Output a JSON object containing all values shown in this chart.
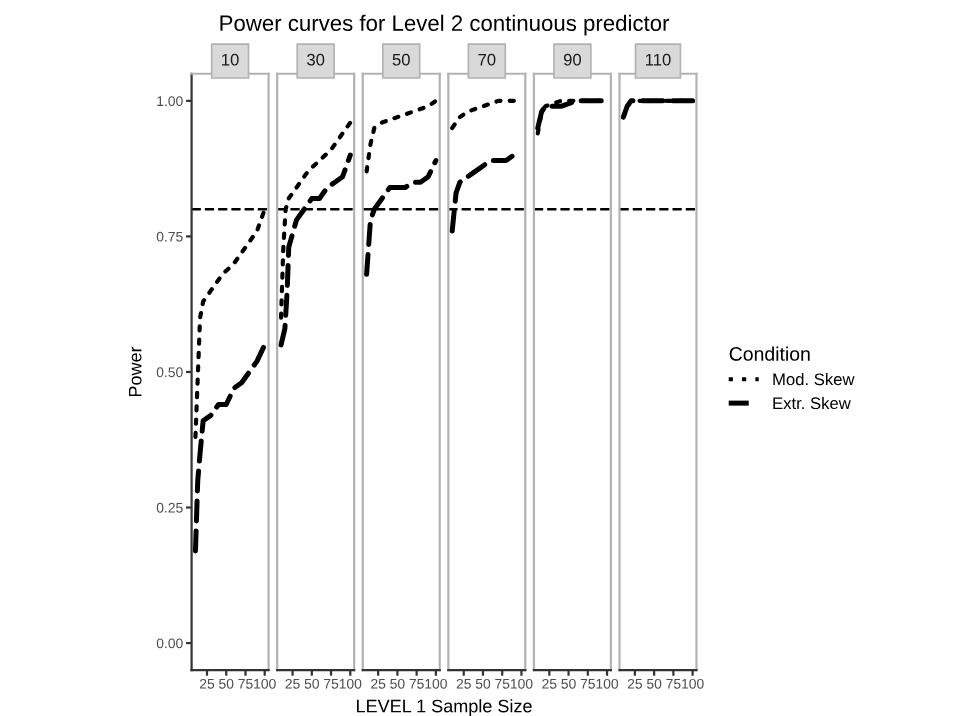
{
  "chart_data": [
    {
      "type": "line",
      "title": "10",
      "annotations": [
        "Power curves for Level 2 continuous predictor"
      ],
      "xlabel": "LEVEL 1 Sample Size",
      "ylabel": "Power",
      "legend_title": "Condition",
      "legend": "right",
      "grid": false,
      "xlim": [
        5,
        105
      ],
      "xticks": [
        25,
        50,
        75,
        100
      ],
      "ylim": [
        -0.05,
        1.05
      ],
      "yticks": [
        {
          "value": 0,
          "label": "0.00"
        },
        {
          "value": 0.25,
          "label": "0.25"
        },
        {
          "value": 0.5,
          "label": "0.50"
        },
        {
          "value": 0.75,
          "label": "0.75"
        },
        {
          "value": 1,
          "label": "1.00"
        }
      ],
      "ref_lines": [
        {
          "axis": "y",
          "value": 0.8,
          "color": "#000000",
          "line_style": "dashed"
        }
      ],
      "series": [
        {
          "name": "Mod. Skew",
          "color": "#000000",
          "line_style": "dotted",
          "x": [
            10,
            13,
            16,
            20,
            30,
            45,
            60,
            75,
            90,
            100
          ],
          "values": [
            0.38,
            0.49,
            0.6,
            0.63,
            0.65,
            0.68,
            0.7,
            0.73,
            0.76,
            0.8
          ]
        },
        {
          "name": "Extr. Skew",
          "color": "#000000",
          "line_style": "dashed",
          "x": [
            10,
            13,
            16,
            20,
            30,
            40,
            50,
            60,
            70,
            80,
            90,
            100
          ],
          "values": [
            0.17,
            0.3,
            0.35,
            0.41,
            0.42,
            0.44,
            0.44,
            0.47,
            0.48,
            0.5,
            0.52,
            0.55
          ]
        }
      ]
    },
    {
      "type": "line",
      "title": "30",
      "tick_labels": "x",
      "grid": false,
      "xlim": [
        5,
        105
      ],
      "xticks": [
        25,
        50,
        75,
        100
      ],
      "ylim": [
        -0.05,
        1.05
      ],
      "yticks": [
        {
          "value": 0,
          "label": null
        },
        {
          "value": 0.25,
          "label": null
        },
        {
          "value": 0.5,
          "label": null
        },
        {
          "value": 0.75,
          "label": null
        },
        {
          "value": 1,
          "label": null
        }
      ],
      "ref_lines": [
        {
          "axis": "y",
          "value": 0.8,
          "color": "#000000",
          "line_style": "dashed"
        }
      ],
      "series": [
        {
          "color": "#000000",
          "line_style": "dotted",
          "x": [
            10,
            13,
            16,
            20,
            30,
            45,
            60,
            75,
            90,
            100
          ],
          "values": [
            0.6,
            0.73,
            0.8,
            0.82,
            0.84,
            0.87,
            0.89,
            0.91,
            0.94,
            0.96
          ]
        },
        {
          "color": "#000000",
          "line_style": "dashed",
          "x": [
            10,
            15,
            18,
            20,
            30,
            40,
            50,
            60,
            70,
            80,
            90,
            100
          ],
          "values": [
            0.55,
            0.58,
            0.65,
            0.73,
            0.78,
            0.8,
            0.82,
            0.82,
            0.84,
            0.85,
            0.86,
            0.9
          ]
        }
      ]
    },
    {
      "type": "line",
      "title": "50",
      "tick_labels": "x",
      "grid": false,
      "xlim": [
        5,
        105
      ],
      "xticks": [
        25,
        50,
        75,
        100
      ],
      "ylim": [
        -0.05,
        1.05
      ],
      "yticks": [
        {
          "value": 0,
          "label": null
        },
        {
          "value": 0.25,
          "label": null
        },
        {
          "value": 0.5,
          "label": null
        },
        {
          "value": 0.75,
          "label": null
        },
        {
          "value": 1,
          "label": null
        }
      ],
      "ref_lines": [
        {
          "axis": "y",
          "value": 0.8,
          "color": "#000000",
          "line_style": "dashed"
        }
      ],
      "series": [
        {
          "color": "#000000",
          "line_style": "dotted",
          "x": [
            10,
            15,
            20,
            30,
            50,
            70,
            90,
            100
          ],
          "values": [
            0.87,
            0.92,
            0.95,
            0.96,
            0.97,
            0.98,
            0.99,
            1.0
          ]
        },
        {
          "color": "#000000",
          "line_style": "dashed",
          "x": [
            10,
            15,
            20,
            30,
            40,
            50,
            60,
            70,
            80,
            90,
            100
          ],
          "values": [
            0.68,
            0.78,
            0.8,
            0.82,
            0.84,
            0.84,
            0.84,
            0.85,
            0.85,
            0.86,
            0.89
          ]
        }
      ]
    },
    {
      "type": "line",
      "title": "70",
      "tick_labels": "x",
      "grid": false,
      "xlim": [
        5,
        105
      ],
      "xticks": [
        25,
        50,
        75,
        100
      ],
      "ylim": [
        -0.05,
        1.05
      ],
      "yticks": [
        {
          "value": 0,
          "label": null
        },
        {
          "value": 0.25,
          "label": null
        },
        {
          "value": 0.5,
          "label": null
        },
        {
          "value": 0.75,
          "label": null
        },
        {
          "value": 1,
          "label": null
        }
      ],
      "ref_lines": [
        {
          "axis": "y",
          "value": 0.8,
          "color": "#000000",
          "line_style": "dashed"
        }
      ],
      "series": [
        {
          "color": "#000000",
          "line_style": "dotted",
          "x": [
            10,
            20,
            30,
            50,
            70,
            90,
            100
          ],
          "values": [
            0.95,
            0.97,
            0.98,
            0.99,
            1.0,
            1.0,
            1.0
          ]
        },
        {
          "color": "#000000",
          "line_style": "dashed",
          "x": [
            10,
            15,
            20,
            30,
            40,
            50,
            60,
            70,
            80,
            90,
            100
          ],
          "values": [
            0.76,
            0.83,
            0.85,
            0.86,
            0.87,
            0.88,
            0.89,
            0.89,
            0.89,
            0.9,
            0.9
          ]
        }
      ]
    },
    {
      "type": "line",
      "title": "90",
      "tick_labels": "x",
      "grid": false,
      "xlim": [
        5,
        105
      ],
      "xticks": [
        25,
        50,
        75,
        100
      ],
      "ylim": [
        -0.05,
        1.05
      ],
      "yticks": [
        {
          "value": 0,
          "label": null
        },
        {
          "value": 0.25,
          "label": null
        },
        {
          "value": 0.5,
          "label": null
        },
        {
          "value": 0.75,
          "label": null
        },
        {
          "value": 1,
          "label": null
        }
      ],
      "ref_lines": [
        {
          "axis": "y",
          "value": 0.8,
          "color": "#000000",
          "line_style": "dashed"
        }
      ],
      "series": [
        {
          "color": "#000000",
          "line_style": "dotted",
          "x": [
            10,
            15,
            20,
            40,
            60,
            80,
            100
          ],
          "values": [
            0.94,
            0.98,
            0.99,
            1.0,
            1.0,
            1.0,
            1.0
          ]
        },
        {
          "color": "#000000",
          "line_style": "dashed",
          "x": [
            10,
            15,
            20,
            40,
            60,
            80,
            100
          ],
          "values": [
            0.95,
            0.98,
            0.99,
            0.99,
            1.0,
            1.0,
            1.0
          ]
        }
      ]
    },
    {
      "type": "line",
      "title": "110",
      "tick_labels": "x",
      "grid": false,
      "xlim": [
        5,
        105
      ],
      "xticks": [
        25,
        50,
        75,
        100
      ],
      "ylim": [
        -0.05,
        1.05
      ],
      "yticks": [
        {
          "value": 0,
          "label": null
        },
        {
          "value": 0.25,
          "label": null
        },
        {
          "value": 0.5,
          "label": null
        },
        {
          "value": 0.75,
          "label": null
        },
        {
          "value": 1,
          "label": null
        }
      ],
      "ref_lines": [
        {
          "axis": "y",
          "value": 0.8,
          "color": "#000000",
          "line_style": "dashed"
        }
      ],
      "series": [
        {
          "color": "#000000",
          "line_style": "dotted",
          "x": [
            10,
            15,
            20,
            40,
            60,
            80,
            100
          ],
          "values": [
            0.97,
            0.99,
            1.0,
            1.0,
            1.0,
            1.0,
            1.0
          ]
        },
        {
          "color": "#000000",
          "line_style": "dashed",
          "x": [
            10,
            15,
            20,
            40,
            60,
            80,
            100
          ],
          "values": [
            0.97,
            0.99,
            1.0,
            1.0,
            1.0,
            1.0,
            1.0
          ]
        }
      ]
    }
  ]
}
